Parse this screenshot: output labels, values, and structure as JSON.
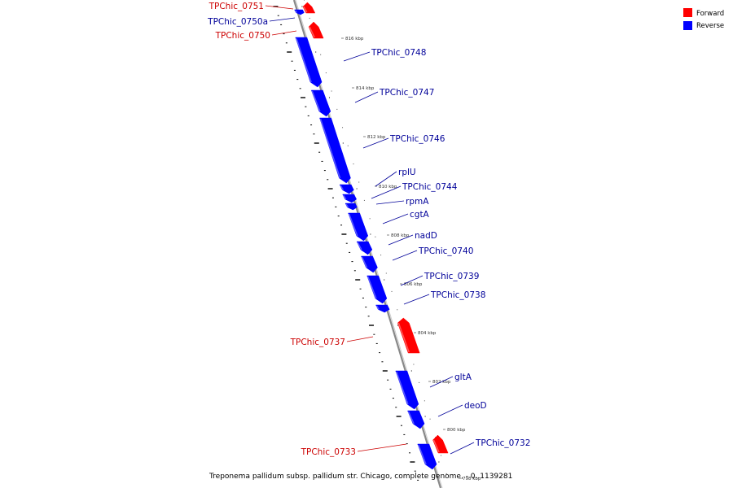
{
  "colors": {
    "forward": "#ff0000",
    "reverse": "#0000ff",
    "forward_label": "#cc0000",
    "reverse_label": "#000099",
    "backbone": "#888888"
  },
  "legend": {
    "forward_label": "Forward",
    "reverse_label": "Reverse"
  },
  "caption": "Treponema pallidum subsp. pallidum str. Chicago, complete genome, - 0..1139281",
  "kbp_labels": [
    "816 kbp",
    "814 kbp",
    "812 kbp",
    "810 kbp",
    "808 kbp",
    "806 kbp",
    "804 kbp",
    "802 kbp",
    "800 kbp",
    "798 kbp"
  ],
  "genes": [
    {
      "name": "TPChic_0751",
      "strand": "forward"
    },
    {
      "name": "TPChic_0750a",
      "strand": "reverse"
    },
    {
      "name": "TPChic_0750",
      "strand": "forward"
    },
    {
      "name": "TPChic_0748",
      "strand": "reverse"
    },
    {
      "name": "TPChic_0747",
      "strand": "reverse"
    },
    {
      "name": "TPChic_0746",
      "strand": "reverse"
    },
    {
      "name": "rplU",
      "strand": "reverse"
    },
    {
      "name": "TPChic_0744",
      "strand": "reverse"
    },
    {
      "name": "rpmA",
      "strand": "reverse"
    },
    {
      "name": "cgtA",
      "strand": "reverse"
    },
    {
      "name": "nadD",
      "strand": "reverse"
    },
    {
      "name": "TPChic_0740",
      "strand": "reverse"
    },
    {
      "name": "TPChic_0739",
      "strand": "reverse"
    },
    {
      "name": "TPChic_0738",
      "strand": "reverse"
    },
    {
      "name": "TPChic_0737",
      "strand": "forward"
    },
    {
      "name": "gltA",
      "strand": "reverse"
    },
    {
      "name": "deoD",
      "strand": "reverse"
    },
    {
      "name": "TPChic_0733",
      "strand": "forward"
    },
    {
      "name": "TPChic_0732",
      "strand": "reverse"
    }
  ]
}
